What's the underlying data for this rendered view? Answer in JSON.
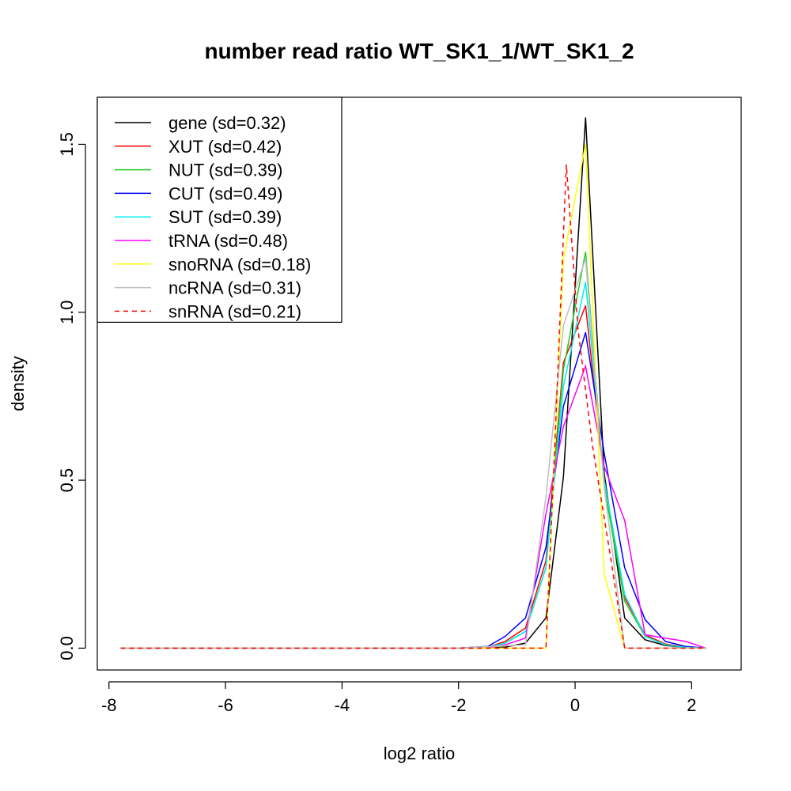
{
  "chart_data": {
    "type": "line",
    "title": "number read ratio WT_SK1_1/WT_SK1_2",
    "xlabel": "log2 ratio",
    "ylabel": "density",
    "xlim": [
      -8.2,
      2.85
    ],
    "ylim": [
      -0.065,
      1.64
    ],
    "x_ticks": [
      -8,
      -6,
      -4,
      -2,
      0,
      2
    ],
    "x_tick_labels": [
      "-8",
      "-6",
      "-4",
      "-2",
      "0",
      "2"
    ],
    "y_ticks": [
      0,
      0.5,
      1,
      1.5
    ],
    "y_tick_labels": [
      "0.0",
      "0.5",
      "1.0",
      "1.5"
    ],
    "grid": false,
    "legend_position": "top-left",
    "series": [
      {
        "name": "gene (sd=0.32)",
        "color": "#000000",
        "dash": false,
        "x": [
          -7.8,
          -2.0,
          -1.5,
          -1.2,
          -0.85,
          -0.5,
          -0.2,
          0.18,
          0.5,
          0.85,
          1.2,
          1.55,
          1.9,
          2.25
        ],
        "y": [
          0,
          0,
          0,
          0.003,
          0.015,
          0.09,
          0.51,
          1.58,
          0.52,
          0.09,
          0.025,
          0.008,
          0.002,
          0
        ]
      },
      {
        "name": "XUT (sd=0.42)",
        "color": "#ff0000",
        "dash": false,
        "x": [
          -7.8,
          -2.0,
          -1.5,
          -1.2,
          -0.85,
          -0.5,
          -0.2,
          0.18,
          0.5,
          0.85,
          1.2,
          1.55,
          1.9,
          2.25
        ],
        "y": [
          0,
          0,
          0.002,
          0.02,
          0.06,
          0.26,
          0.85,
          1.02,
          0.5,
          0.15,
          0.04,
          0.012,
          0.003,
          0
        ]
      },
      {
        "name": "NUT (sd=0.39)",
        "color": "#22cc22",
        "dash": false,
        "x": [
          -7.8,
          -2.0,
          -1.5,
          -1.2,
          -0.85,
          -0.5,
          -0.2,
          0.18,
          0.5,
          0.85,
          1.2,
          1.55,
          1.9,
          2.25
        ],
        "y": [
          0,
          0,
          0.002,
          0.015,
          0.05,
          0.24,
          0.83,
          1.18,
          0.48,
          0.14,
          0.035,
          0.01,
          0.002,
          0
        ]
      },
      {
        "name": "CUT (sd=0.49)",
        "color": "#0000ff",
        "dash": false,
        "x": [
          -7.8,
          -2.0,
          -1.5,
          -1.2,
          -0.85,
          -0.5,
          -0.2,
          0.18,
          0.5,
          0.85,
          1.2,
          1.55,
          1.9,
          2.25
        ],
        "y": [
          0,
          0,
          0.005,
          0.035,
          0.09,
          0.3,
          0.72,
          0.94,
          0.58,
          0.24,
          0.085,
          0.02,
          0.005,
          0
        ]
      },
      {
        "name": "SUT (sd=0.39)",
        "color": "#00eeee",
        "dash": false,
        "x": [
          -7.8,
          -2.0,
          -1.5,
          -1.2,
          -0.85,
          -0.5,
          -0.2,
          0.18,
          0.5,
          0.85,
          1.2,
          1.55,
          1.9,
          2.25
        ],
        "y": [
          0,
          0,
          0.002,
          0.015,
          0.05,
          0.24,
          0.78,
          1.09,
          0.5,
          0.16,
          0.035,
          0.01,
          0.002,
          0
        ]
      },
      {
        "name": "tRNA (sd=0.48)",
        "color": "#ff00ff",
        "dash": false,
        "x": [
          -7.8,
          -2.0,
          -1.5,
          -1.2,
          -0.85,
          -0.5,
          -0.2,
          0.18,
          0.5,
          0.85,
          1.2,
          1.55,
          1.9,
          2.25
        ],
        "y": [
          0,
          0,
          0,
          0.01,
          0.03,
          0.4,
          0.66,
          0.84,
          0.54,
          0.38,
          0.04,
          0.03,
          0.02,
          0
        ]
      },
      {
        "name": "snoRNA (sd=0.18)",
        "color": "#ffff00",
        "dash": false,
        "x": [
          -7.8,
          -2.0,
          -0.5,
          -0.2,
          0.18,
          0.5,
          0.85,
          2.25
        ],
        "y": [
          0,
          0,
          0,
          1.16,
          1.5,
          0.22,
          0,
          0
        ]
      },
      {
        "name": "ncRNA (sd=0.31)",
        "color": "#bebebe",
        "dash": false,
        "x": [
          -7.8,
          -2.0,
          -0.85,
          -0.5,
          -0.2,
          0.18,
          0.5,
          0.85,
          2.25
        ],
        "y": [
          0,
          0,
          0.01,
          0.45,
          0.96,
          1.16,
          0.48,
          0,
          0
        ]
      },
      {
        "name": "snRNA (sd=0.21)",
        "color": "#ff0000",
        "dash": true,
        "x": [
          -7.8,
          -2.0,
          -0.5,
          -0.35,
          -0.15,
          0.05,
          0.3,
          0.6,
          0.85,
          2.25
        ],
        "y": [
          0,
          0,
          0,
          0.6,
          1.44,
          0.95,
          0.6,
          0.28,
          0,
          0
        ]
      }
    ]
  }
}
